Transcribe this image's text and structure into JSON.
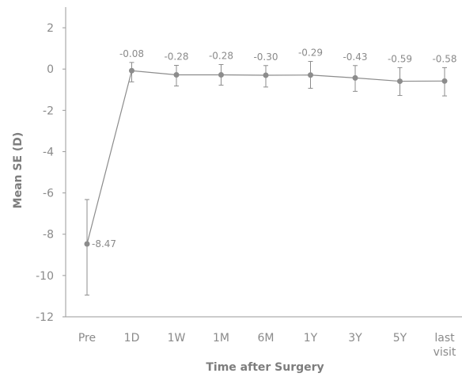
{
  "chart_data": {
    "type": "line",
    "title": "",
    "xlabel": "Time after Surgery",
    "ylabel": "Mean SE (D)",
    "categories": [
      "Pre",
      "1D",
      "1W",
      "1M",
      "6M",
      "1Y",
      "3Y",
      "5Y",
      "last visit"
    ],
    "values": [
      -8.47,
      -0.08,
      -0.28,
      -0.28,
      -0.3,
      -0.29,
      -0.43,
      -0.59,
      -0.58
    ],
    "labels": [
      "-8.47",
      "-0.08",
      "-0.28",
      "-0.28",
      "-0.30",
      "-0.29",
      "-0.43",
      "-0.59",
      "-0.58"
    ],
    "error_low": [
      -10.95,
      -0.62,
      -0.82,
      -0.78,
      -0.87,
      -0.93,
      -1.08,
      -1.28,
      -1.3
    ],
    "error_high": [
      -6.32,
      0.32,
      0.18,
      0.22,
      0.17,
      0.37,
      0.17,
      0.07,
      0.07
    ],
    "ylim": [
      -12,
      3
    ],
    "yticks": [
      2,
      0,
      -2,
      -4,
      -6,
      -8,
      -10,
      -12
    ],
    "grid": false,
    "colors": {
      "line": "#8c8c8c",
      "marker": "#8c8c8c",
      "axis": "#9a9a9a",
      "text": "#8a8a8a"
    }
  }
}
